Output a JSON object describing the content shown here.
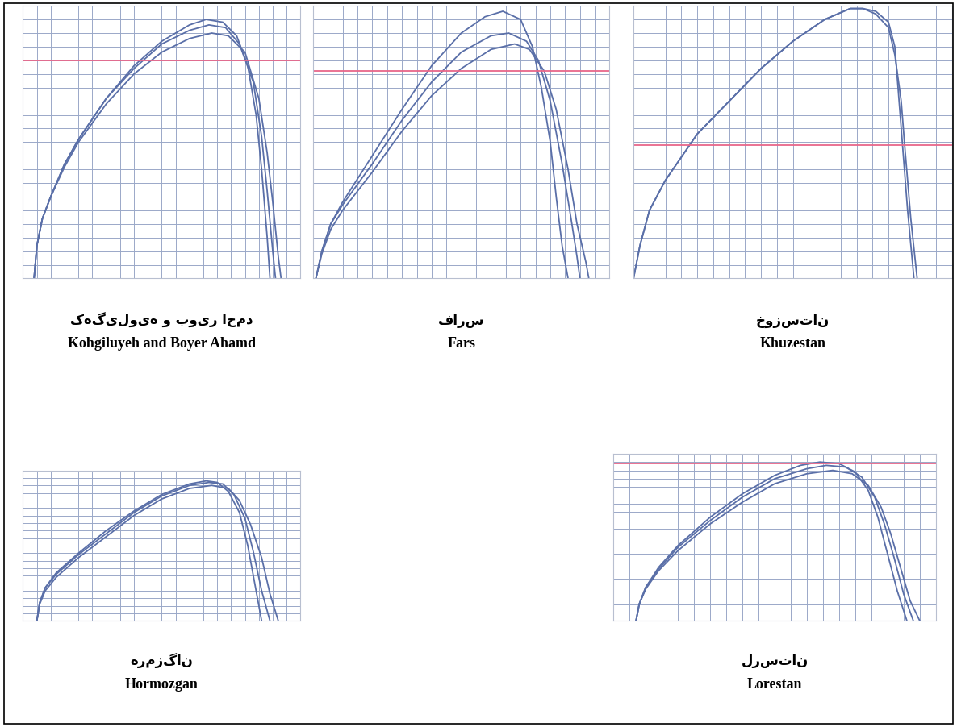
{
  "chart_data": [
    {
      "type": "line",
      "title": "Kohgiluyeh and Boyer Ahamd",
      "subtitle": "کهگیلویه و بویر احمد",
      "xlim": [
        0,
        100
      ],
      "ylim": [
        0,
        100
      ],
      "xticks": [
        0,
        5,
        10,
        15,
        20,
        25,
        30,
        35,
        40,
        45,
        50,
        55,
        60,
        65,
        70,
        75,
        80,
        85,
        90,
        95,
        100
      ],
      "yticks": [
        0,
        5,
        10,
        15,
        20,
        25,
        30,
        35,
        40,
        45,
        50,
        55,
        60,
        65,
        70,
        75,
        80,
        85,
        90,
        95,
        100
      ],
      "grid": true,
      "tick_labels": false,
      "series": [
        {
          "color": "#5a6fa8",
          "line_style": "solid",
          "x": [
            4,
            5,
            7,
            10,
            15,
            20,
            30,
            40,
            50,
            60,
            66,
            72,
            77,
            81,
            84,
            86,
            88,
            89
          ],
          "values": [
            0,
            12,
            22,
            30,
            42,
            51,
            66,
            78,
            87,
            93,
            95,
            94,
            89,
            78,
            60,
            40,
            15,
            0
          ]
        },
        {
          "color": "#5a6fa8",
          "line_style": "solid",
          "x": [
            4,
            5,
            7,
            10,
            15,
            20,
            30,
            40,
            50,
            60,
            67,
            73,
            78,
            83,
            86,
            88,
            90,
            91
          ],
          "values": [
            0,
            12,
            22,
            30,
            42,
            51,
            66,
            77,
            86,
            91,
            93,
            92,
            86,
            72,
            52,
            32,
            10,
            0
          ]
        },
        {
          "color": "#5a6fa8",
          "line_style": "solid",
          "x": [
            4,
            5,
            7,
            10,
            15,
            20,
            30,
            40,
            50,
            60,
            68,
            74,
            80,
            85,
            88,
            90,
            92,
            93
          ],
          "values": [
            0,
            12,
            22,
            30,
            41,
            50,
            64,
            75,
            83,
            88,
            90,
            89,
            83,
            66,
            46,
            28,
            8,
            0
          ]
        },
        {
          "color": "#e8678a",
          "line_style": "solid",
          "x": [
            0,
            100
          ],
          "values": [
            80,
            80
          ]
        }
      ]
    },
    {
      "type": "line",
      "title": "Fars",
      "subtitle": "فارس",
      "xlim": [
        0,
        100
      ],
      "ylim": [
        0,
        100
      ],
      "xticks": [
        0,
        5,
        10,
        15,
        20,
        25,
        30,
        35,
        40,
        45,
        50,
        55,
        60,
        65,
        70,
        75,
        80,
        85,
        90,
        95,
        100
      ],
      "yticks": [
        0,
        5,
        10,
        15,
        20,
        25,
        30,
        35,
        40,
        45,
        50,
        55,
        60,
        65,
        70,
        75,
        80,
        85,
        90,
        95,
        100
      ],
      "grid": true,
      "tick_labels": false,
      "series": [
        {
          "color": "#5a6fa8",
          "line_style": "solid",
          "x": [
            1,
            3,
            6,
            10,
            20,
            30,
            40,
            50,
            58,
            64,
            70,
            74,
            77,
            80,
            82,
            84,
            86
          ],
          "values": [
            0,
            10,
            20,
            28,
            45,
            62,
            78,
            90,
            96,
            98,
            95,
            85,
            70,
            50,
            30,
            12,
            0
          ]
        },
        {
          "color": "#5a6fa8",
          "line_style": "solid",
          "x": [
            1,
            3,
            6,
            10,
            20,
            30,
            40,
            50,
            60,
            66,
            72,
            76,
            80,
            84,
            87,
            89,
            90
          ],
          "values": [
            0,
            10,
            20,
            27,
            42,
            58,
            72,
            83,
            89,
            90,
            87,
            80,
            65,
            42,
            22,
            8,
            0
          ]
        },
        {
          "color": "#5a6fa8",
          "line_style": "solid",
          "x": [
            1,
            3,
            6,
            10,
            20,
            30,
            40,
            50,
            60,
            68,
            73,
            78,
            82,
            86,
            89,
            92,
            93
          ],
          "values": [
            0,
            9,
            18,
            25,
            39,
            54,
            67,
            77,
            84,
            86,
            84,
            76,
            62,
            40,
            20,
            6,
            0
          ]
        },
        {
          "color": "#e8678a",
          "line_style": "solid",
          "x": [
            0,
            100
          ],
          "values": [
            76,
            76
          ]
        }
      ]
    },
    {
      "type": "line",
      "title": "Khuzestan",
      "subtitle": "خوزستان",
      "xlim": [
        0,
        100
      ],
      "ylim": [
        0,
        100
      ],
      "xticks": [
        0,
        5,
        10,
        15,
        20,
        25,
        30,
        35,
        40,
        45,
        50,
        55,
        60,
        65,
        70,
        75,
        80,
        85,
        90,
        95,
        100
      ],
      "yticks": [
        0,
        5,
        10,
        15,
        20,
        25,
        30,
        35,
        40,
        45,
        50,
        55,
        60,
        65,
        70,
        75,
        80,
        85,
        90,
        95,
        100
      ],
      "grid": true,
      "tick_labels": false,
      "series": [
        {
          "color": "#5a6fa8",
          "line_style": "solid",
          "x": [
            0,
            2,
            5,
            10,
            20,
            30,
            40,
            50,
            60,
            68,
            72,
            76,
            80,
            82,
            83,
            84,
            86,
            88
          ],
          "values": [
            0,
            12,
            25,
            36,
            53,
            65,
            77,
            87,
            95,
            99,
            99,
            98,
            94,
            85,
            70,
            55,
            25,
            0
          ]
        },
        {
          "color": "#5a6fa8",
          "line_style": "solid",
          "x": [
            0,
            2,
            5,
            10,
            20,
            30,
            40,
            50,
            60,
            68,
            72,
            76,
            80,
            82,
            84,
            85,
            87,
            89
          ],
          "values": [
            0,
            12,
            25,
            36,
            53,
            65,
            77,
            87,
            95,
            99,
            99,
            97,
            92,
            82,
            65,
            50,
            22,
            0
          ]
        },
        {
          "color": "#e8678a",
          "line_style": "solid",
          "x": [
            0,
            100
          ],
          "values": [
            49,
            49
          ]
        }
      ]
    },
    {
      "type": "line",
      "title": "Hormozgan",
      "subtitle": "هرمزگان",
      "xlim": [
        0,
        100
      ],
      "ylim": [
        0,
        100
      ],
      "xticks": [
        0,
        5,
        10,
        15,
        20,
        25,
        30,
        35,
        40,
        45,
        50,
        55,
        60,
        65,
        70,
        75,
        80,
        85,
        90,
        95,
        100
      ],
      "yticks": [
        0,
        5,
        10,
        15,
        20,
        25,
        30,
        35,
        40,
        45,
        50,
        55,
        60,
        65,
        70,
        75,
        80,
        85,
        90,
        95,
        100
      ],
      "grid": true,
      "tick_labels": false,
      "series": [
        {
          "color": "#5a6fa8",
          "line_style": "solid",
          "x": [
            5,
            6,
            8,
            12,
            20,
            30,
            40,
            50,
            60,
            66,
            70,
            74,
            78,
            81,
            84,
            86
          ],
          "values": [
            0,
            12,
            22,
            32,
            45,
            60,
            73,
            84,
            91,
            93,
            92,
            86,
            72,
            50,
            20,
            0
          ]
        },
        {
          "color": "#5a6fa8",
          "line_style": "solid",
          "x": [
            5,
            6,
            8,
            12,
            20,
            30,
            40,
            50,
            60,
            67,
            72,
            76,
            80,
            83,
            86,
            89
          ],
          "values": [
            0,
            12,
            22,
            31,
            44,
            58,
            72,
            83,
            90,
            92,
            91,
            84,
            68,
            46,
            20,
            0
          ]
        },
        {
          "color": "#5a6fa8",
          "line_style": "solid",
          "x": [
            5,
            6,
            8,
            12,
            20,
            30,
            40,
            50,
            60,
            68,
            74,
            78,
            82,
            86,
            89,
            92
          ],
          "values": [
            0,
            11,
            20,
            29,
            42,
            56,
            70,
            81,
            88,
            90,
            88,
            80,
            64,
            42,
            18,
            0
          ]
        }
      ]
    },
    {
      "type": "line",
      "title": "Lorestan",
      "subtitle": "لرستان",
      "xlim": [
        0,
        100
      ],
      "ylim": [
        0,
        100
      ],
      "xticks": [
        0,
        5,
        10,
        15,
        20,
        25,
        30,
        35,
        40,
        45,
        50,
        55,
        60,
        65,
        70,
        75,
        80,
        85,
        90,
        95,
        100
      ],
      "yticks": [
        0,
        5,
        10,
        15,
        20,
        25,
        30,
        35,
        40,
        45,
        50,
        55,
        60,
        65,
        70,
        75,
        80,
        85,
        90,
        95,
        100
      ],
      "grid": true,
      "tick_labels": false,
      "series": [
        {
          "color": "#5a6fa8",
          "line_style": "solid",
          "x": [
            7,
            8,
            10,
            14,
            20,
            30,
            40,
            50,
            58,
            64,
            70,
            75,
            79,
            82,
            85,
            88,
            91
          ],
          "values": [
            0,
            10,
            20,
            32,
            45,
            62,
            76,
            87,
            93,
            95,
            94,
            89,
            78,
            62,
            40,
            18,
            0
          ]
        },
        {
          "color": "#5a6fa8",
          "line_style": "solid",
          "x": [
            7,
            8,
            10,
            14,
            20,
            30,
            40,
            50,
            60,
            66,
            72,
            77,
            81,
            84,
            87,
            90,
            93
          ],
          "values": [
            0,
            10,
            20,
            31,
            44,
            60,
            74,
            85,
            91,
            93,
            92,
            86,
            74,
            58,
            38,
            16,
            0
          ]
        },
        {
          "color": "#5a6fa8",
          "line_style": "solid",
          "x": [
            7,
            8,
            10,
            14,
            20,
            30,
            40,
            50,
            60,
            68,
            74,
            79,
            83,
            86,
            89,
            92,
            95
          ],
          "values": [
            0,
            10,
            19,
            30,
            42,
            58,
            71,
            82,
            88,
            90,
            88,
            81,
            68,
            52,
            32,
            12,
            0
          ]
        },
        {
          "color": "#e8678a",
          "line_style": "solid",
          "x": [
            0,
            100
          ],
          "values": [
            94,
            94
          ]
        }
      ]
    }
  ]
}
